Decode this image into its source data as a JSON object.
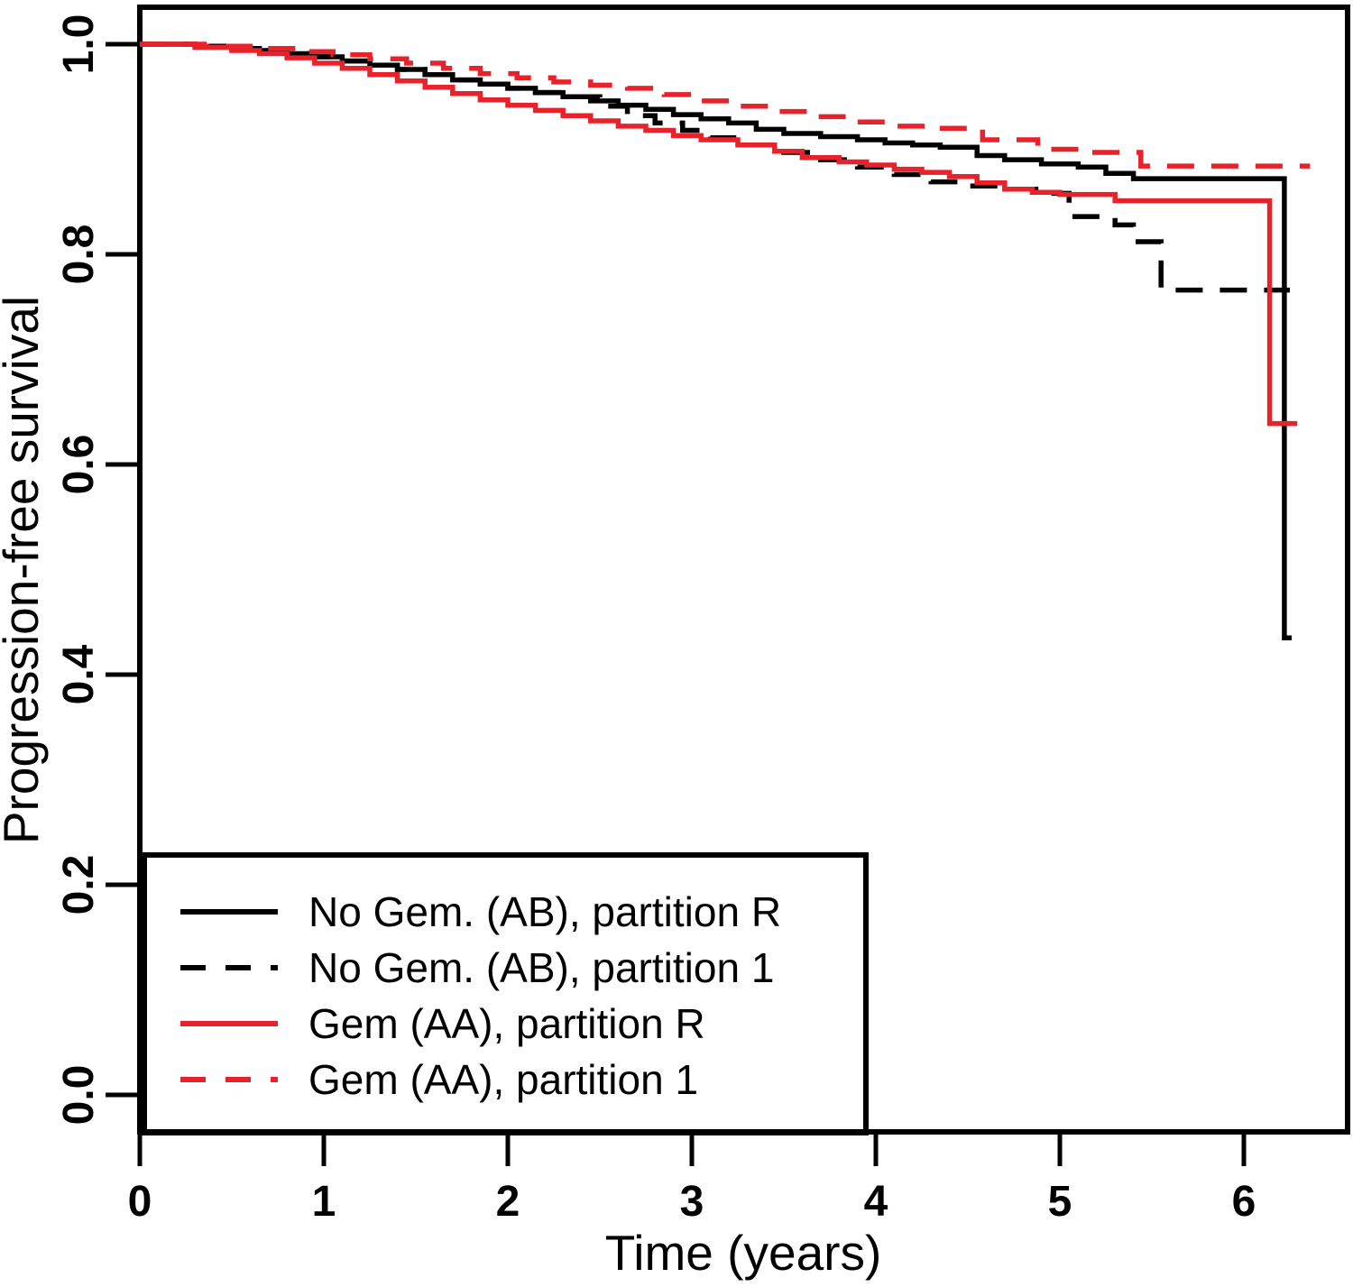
{
  "chart_data": {
    "type": "line",
    "subtype": "kaplan-meier-step",
    "title": "",
    "xlabel": "Time (years)",
    "ylabel": "Progression-free survival",
    "xlim": [
      0,
      6.56
    ],
    "ylim": [
      -0.035,
      1.035
    ],
    "grid": false,
    "x_tick_labels": [
      "0",
      "1",
      "2",
      "3",
      "4",
      "5",
      "6"
    ],
    "x_tick_values": [
      0,
      1,
      2,
      3,
      4,
      5,
      6
    ],
    "y_tick_labels": [
      "1.0",
      "0.8",
      "0.6",
      "0.4",
      "0.2",
      "0.0"
    ],
    "y_tick_values": [
      1.0,
      0.8,
      0.6,
      0.4,
      0.2,
      0.0
    ],
    "colors": {
      "black": "#000000",
      "red": "#e8222b",
      "background": "#ffffff"
    },
    "legend_position": "bottom-left",
    "legend": {
      "entries": [
        {
          "label": "No Gem. (AB), partition R",
          "color": "#000000",
          "dash": "solid"
        },
        {
          "label": "No Gem. (AB), partition 1",
          "color": "#000000",
          "dash": "dashed"
        },
        {
          "label": "Gem (AA), partition R",
          "color": "#e8222b",
          "dash": "solid"
        },
        {
          "label": "Gem (AA), partition 1",
          "color": "#e8222b",
          "dash": "dashed"
        }
      ]
    },
    "series": [
      {
        "name": "No Gem. (AB), partition R",
        "color": "#000000",
        "dash": "solid",
        "points": [
          [
            0,
            1.0
          ],
          [
            0.3,
            0.998
          ],
          [
            0.5,
            0.996
          ],
          [
            0.65,
            0.994
          ],
          [
            0.8,
            0.991
          ],
          [
            0.95,
            0.988
          ],
          [
            1.1,
            0.984
          ],
          [
            1.25,
            0.98
          ],
          [
            1.4,
            0.976
          ],
          [
            1.55,
            0.971
          ],
          [
            1.7,
            0.966
          ],
          [
            1.85,
            0.962
          ],
          [
            2.0,
            0.958
          ],
          [
            2.15,
            0.954
          ],
          [
            2.3,
            0.95
          ],
          [
            2.45,
            0.946
          ],
          [
            2.6,
            0.942
          ],
          [
            2.75,
            0.938
          ],
          [
            2.9,
            0.933
          ],
          [
            3.05,
            0.929
          ],
          [
            3.2,
            0.925
          ],
          [
            3.35,
            0.919
          ],
          [
            3.5,
            0.915
          ],
          [
            3.7,
            0.912
          ],
          [
            3.9,
            0.909
          ],
          [
            4.05,
            0.906
          ],
          [
            4.2,
            0.904
          ],
          [
            4.35,
            0.902
          ],
          [
            4.55,
            0.894
          ],
          [
            4.7,
            0.89
          ],
          [
            4.9,
            0.886
          ],
          [
            5.1,
            0.883
          ],
          [
            5.25,
            0.877
          ],
          [
            5.4,
            0.872
          ],
          [
            6.22,
            0.435
          ],
          [
            6.26,
            0.435
          ]
        ]
      },
      {
        "name": "No Gem. (AB), partition 1",
        "color": "#000000",
        "dash": "dashed",
        "points": [
          [
            0,
            1.0
          ],
          [
            0.3,
            0.998
          ],
          [
            0.5,
            0.996
          ],
          [
            0.65,
            0.994
          ],
          [
            0.8,
            0.991
          ],
          [
            0.95,
            0.988
          ],
          [
            1.1,
            0.984
          ],
          [
            1.25,
            0.98
          ],
          [
            1.4,
            0.976
          ],
          [
            1.55,
            0.971
          ],
          [
            1.7,
            0.966
          ],
          [
            1.85,
            0.962
          ],
          [
            2.0,
            0.958
          ],
          [
            2.15,
            0.954
          ],
          [
            2.3,
            0.95
          ],
          [
            2.5,
            0.941
          ],
          [
            2.65,
            0.932
          ],
          [
            2.8,
            0.925
          ],
          [
            2.95,
            0.918
          ],
          [
            3.1,
            0.911
          ],
          [
            3.3,
            0.904
          ],
          [
            3.5,
            0.897
          ],
          [
            3.7,
            0.89
          ],
          [
            3.9,
            0.883
          ],
          [
            4.1,
            0.876
          ],
          [
            4.3,
            0.869
          ],
          [
            4.5,
            0.865
          ],
          [
            4.75,
            0.862
          ],
          [
            4.95,
            0.858
          ],
          [
            5.05,
            0.836
          ],
          [
            5.3,
            0.828
          ],
          [
            5.4,
            0.812
          ],
          [
            5.55,
            0.766
          ],
          [
            6.25,
            0.766
          ]
        ]
      },
      {
        "name": "Gem (AA), partition R",
        "color": "#e8222b",
        "dash": "solid",
        "points": [
          [
            0,
            1.0
          ],
          [
            0.3,
            0.997
          ],
          [
            0.5,
            0.994
          ],
          [
            0.65,
            0.991
          ],
          [
            0.8,
            0.987
          ],
          [
            0.95,
            0.982
          ],
          [
            1.1,
            0.977
          ],
          [
            1.25,
            0.971
          ],
          [
            1.4,
            0.965
          ],
          [
            1.55,
            0.959
          ],
          [
            1.7,
            0.953
          ],
          [
            1.85,
            0.947
          ],
          [
            2.0,
            0.942
          ],
          [
            2.15,
            0.937
          ],
          [
            2.3,
            0.932
          ],
          [
            2.45,
            0.927
          ],
          [
            2.6,
            0.922
          ],
          [
            2.75,
            0.918
          ],
          [
            2.9,
            0.913
          ],
          [
            3.05,
            0.909
          ],
          [
            3.25,
            0.904
          ],
          [
            3.45,
            0.898
          ],
          [
            3.6,
            0.892
          ],
          [
            3.8,
            0.888
          ],
          [
            3.95,
            0.885
          ],
          [
            4.1,
            0.881
          ],
          [
            4.25,
            0.878
          ],
          [
            4.4,
            0.874
          ],
          [
            4.55,
            0.868
          ],
          [
            4.7,
            0.862
          ],
          [
            4.85,
            0.859
          ],
          [
            5.0,
            0.857
          ],
          [
            5.3,
            0.851
          ],
          [
            6.14,
            0.639
          ],
          [
            6.29,
            0.639
          ]
        ]
      },
      {
        "name": "Gem (AA), partition 1",
        "color": "#e8222b",
        "dash": "dashed",
        "points": [
          [
            0,
            1.0
          ],
          [
            0.35,
            0.998
          ],
          [
            0.6,
            0.996
          ],
          [
            0.85,
            0.993
          ],
          [
            1.05,
            0.99
          ],
          [
            1.25,
            0.986
          ],
          [
            1.45,
            0.982
          ],
          [
            1.65,
            0.977
          ],
          [
            1.85,
            0.972
          ],
          [
            2.05,
            0.968
          ],
          [
            2.25,
            0.964
          ],
          [
            2.45,
            0.961
          ],
          [
            2.65,
            0.958
          ],
          [
            2.85,
            0.952
          ],
          [
            3.05,
            0.946
          ],
          [
            3.25,
            0.941
          ],
          [
            3.45,
            0.936
          ],
          [
            3.65,
            0.931
          ],
          [
            3.85,
            0.926
          ],
          [
            4.05,
            0.922
          ],
          [
            4.3,
            0.92
          ],
          [
            4.58,
            0.909
          ],
          [
            4.88,
            0.9
          ],
          [
            5.15,
            0.897
          ],
          [
            5.44,
            0.884
          ],
          [
            6.36,
            0.884
          ]
        ]
      }
    ]
  }
}
